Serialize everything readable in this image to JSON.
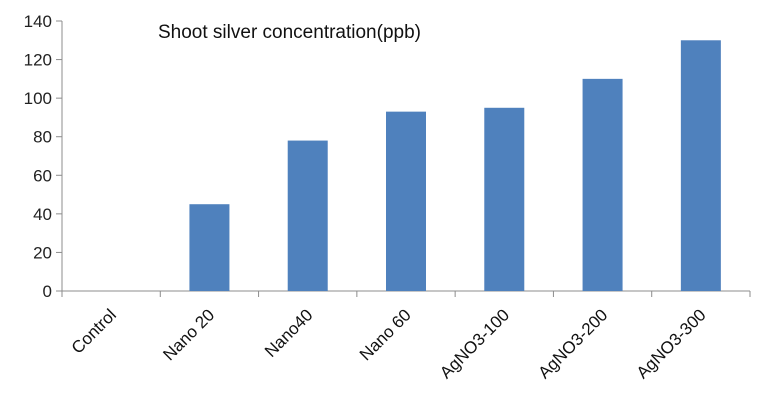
{
  "chart_data": {
    "type": "bar",
    "title": "Shoot silver concentration(ppb)",
    "xlabel": "",
    "ylabel": "",
    "categories": [
      "Control",
      "Nano 20",
      "Nano40",
      "Nano 60",
      "AgNO3-100",
      "AgNO3-200",
      "AgNO3-300"
    ],
    "values": [
      0,
      45,
      78,
      93,
      95,
      110,
      130
    ],
    "ylim": [
      0,
      140
    ],
    "yticks": [
      0,
      20,
      40,
      60,
      80,
      100,
      120,
      140
    ],
    "grid": false,
    "legend": "none",
    "bar_color": "#4f81bd",
    "axis_color": "#8c8c8c"
  }
}
